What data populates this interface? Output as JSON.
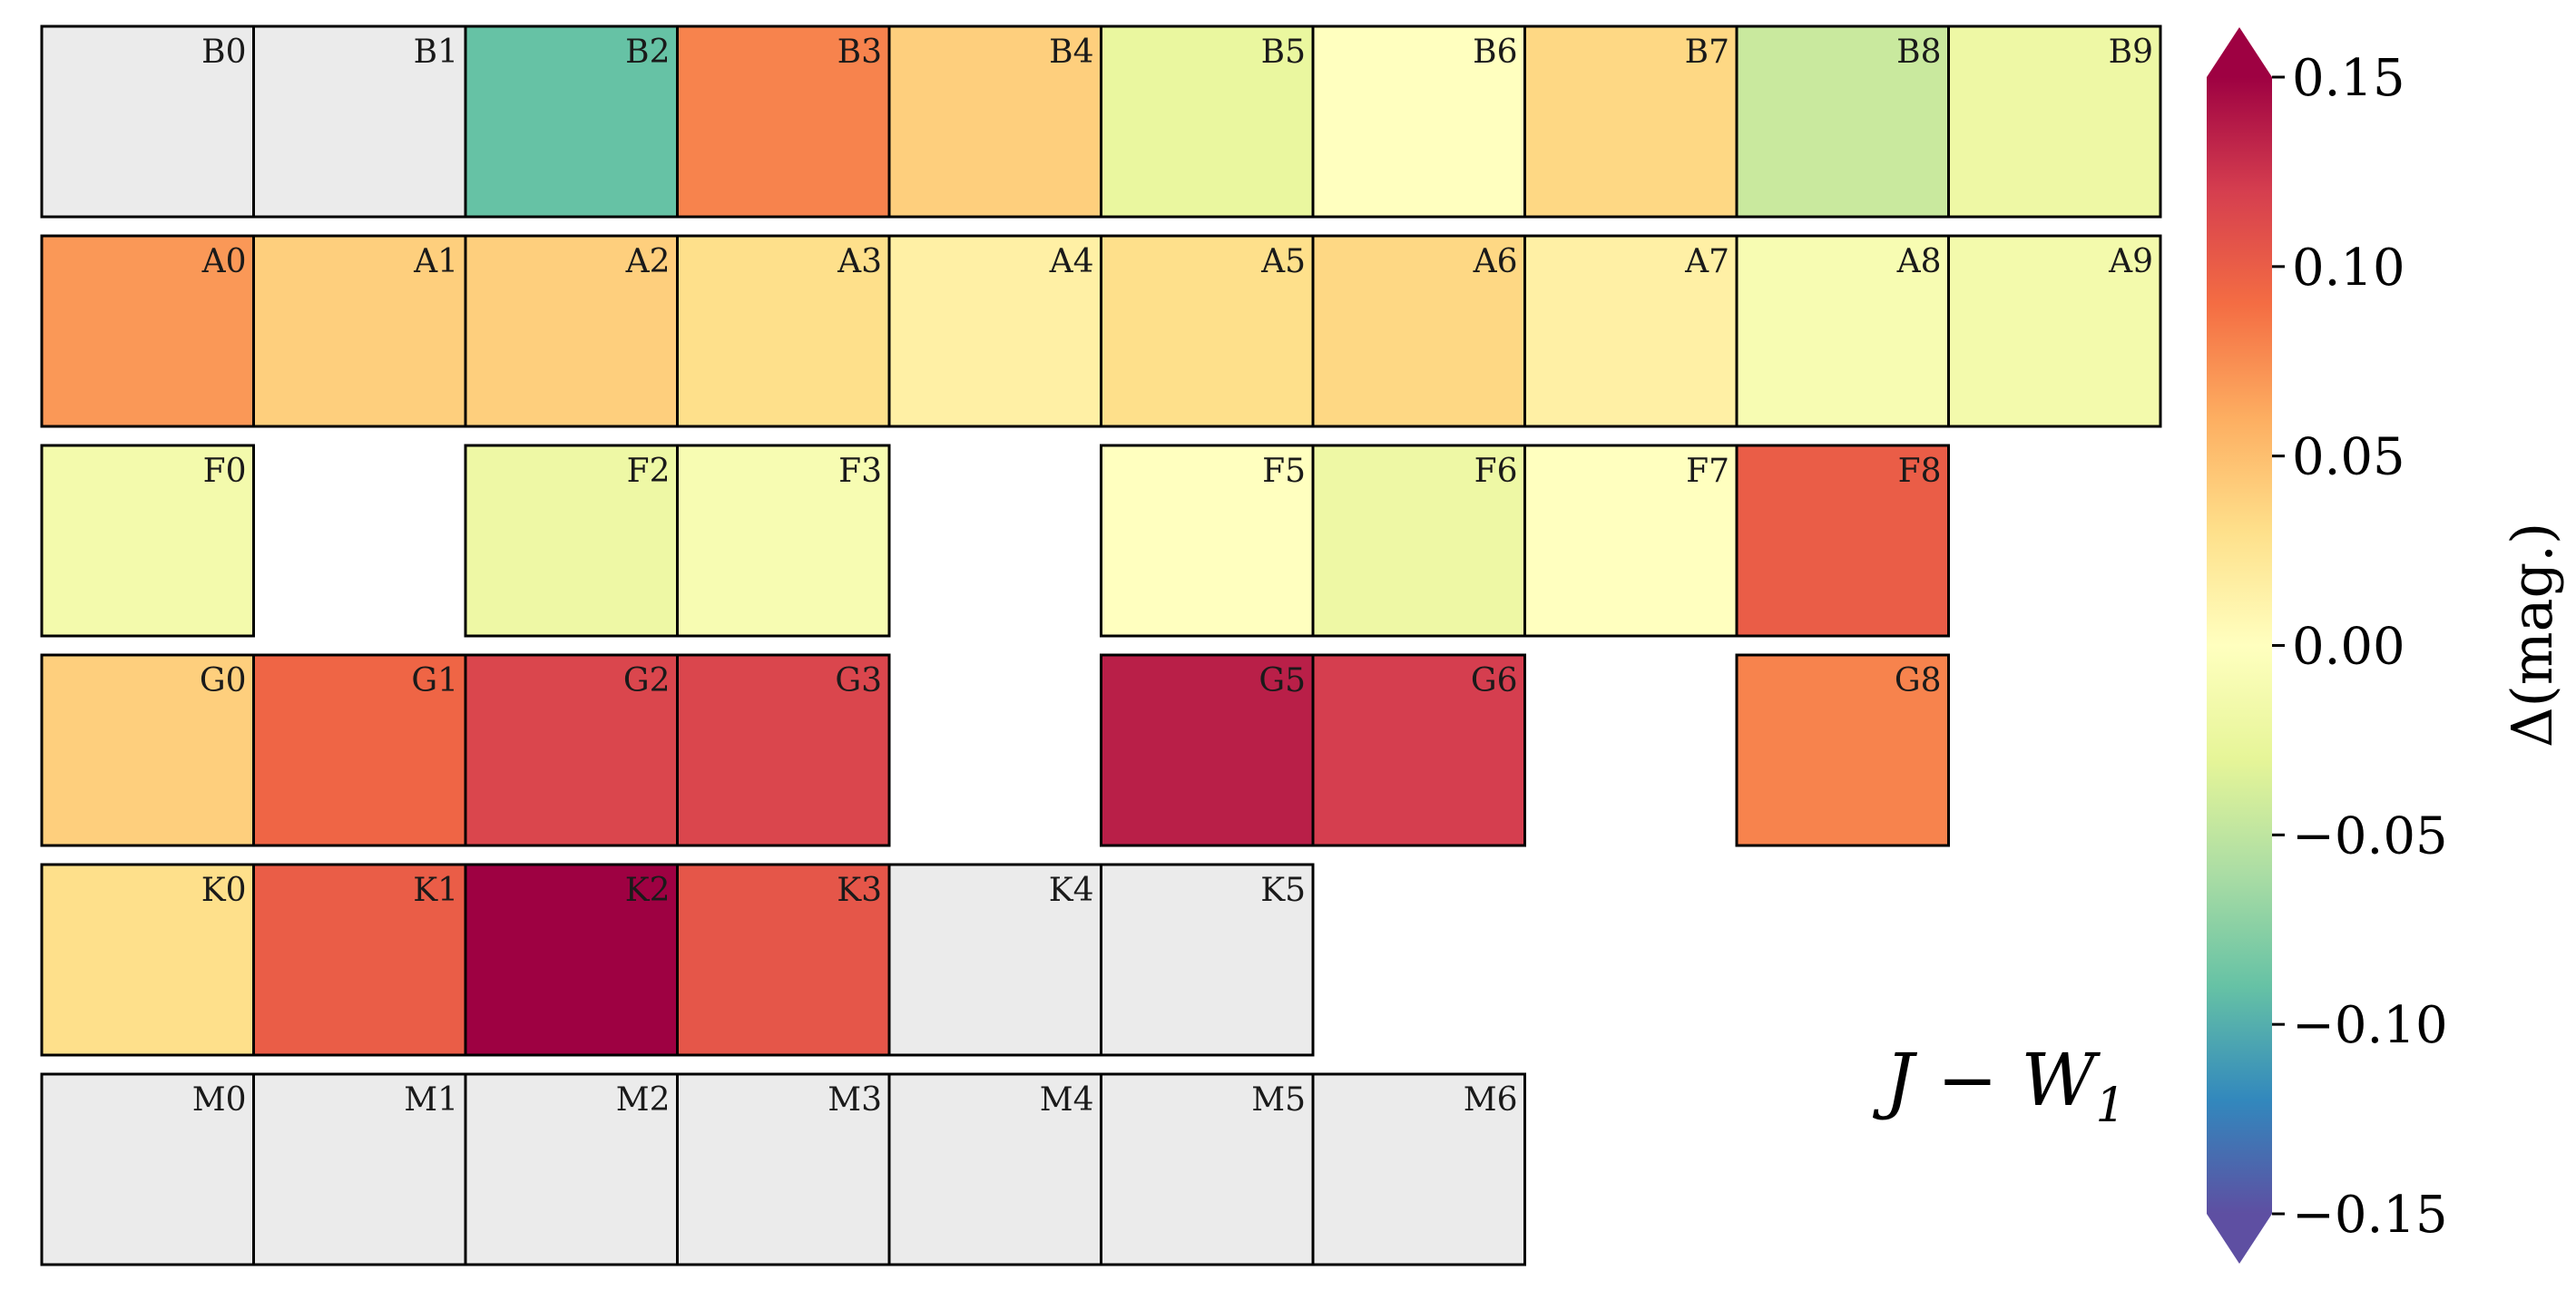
{
  "chart_data": {
    "type": "heatmap",
    "annotation": "J − W",
    "annotation_sub": "1",
    "colorbar": {
      "label": "Δ(mag.)",
      "colormap": "Spectral_r",
      "vmin": -0.15,
      "vmax": 0.15,
      "extend": "both",
      "ticks": [
        {
          "value": 0.15,
          "label": "0.15"
        },
        {
          "value": 0.1,
          "label": "0.10"
        },
        {
          "value": 0.05,
          "label": "0.05"
        },
        {
          "value": 0.0,
          "label": "0.00"
        },
        {
          "value": -0.05,
          "label": "−0.05"
        },
        {
          "value": -0.1,
          "label": "−0.10"
        },
        {
          "value": -0.15,
          "label": "−0.15"
        }
      ]
    },
    "missing_color": "#ebebeb",
    "rows": [
      {
        "name": "B",
        "cells": [
          {
            "label": "B0",
            "value": null
          },
          {
            "label": "B1",
            "value": null
          },
          {
            "label": "B2",
            "value": -0.09
          },
          {
            "label": "B3",
            "value": 0.08
          },
          {
            "label": "B4",
            "value": 0.04
          },
          {
            "label": "B5",
            "value": -0.025
          },
          {
            "label": "B6",
            "value": 0.0
          },
          {
            "label": "B7",
            "value": 0.035
          },
          {
            "label": "B8",
            "value": -0.045
          },
          {
            "label": "B9",
            "value": -0.02
          }
        ]
      },
      {
        "name": "A",
        "cells": [
          {
            "label": "A0",
            "value": 0.07
          },
          {
            "label": "A1",
            "value": 0.04
          },
          {
            "label": "A2",
            "value": 0.04
          },
          {
            "label": "A3",
            "value": 0.03
          },
          {
            "label": "A4",
            "value": 0.015
          },
          {
            "label": "A5",
            "value": 0.03
          },
          {
            "label": "A6",
            "value": 0.035
          },
          {
            "label": "A7",
            "value": 0.015
          },
          {
            "label": "A8",
            "value": -0.01
          },
          {
            "label": "A9",
            "value": -0.015
          }
        ]
      },
      {
        "name": "F",
        "cells": [
          {
            "label": "F0",
            "value": -0.015
          },
          null,
          {
            "label": "F2",
            "value": -0.02
          },
          {
            "label": "F3",
            "value": -0.01
          },
          null,
          {
            "label": "F5",
            "value": 0.0
          },
          {
            "label": "F6",
            "value": -0.02
          },
          {
            "label": "F7",
            "value": 0.0
          },
          {
            "label": "F8",
            "value": 0.1
          }
        ]
      },
      {
        "name": "G",
        "cells": [
          {
            "label": "G0",
            "value": 0.04
          },
          {
            "label": "G1",
            "value": 0.095
          },
          {
            "label": "G2",
            "value": 0.115
          },
          {
            "label": "G3",
            "value": 0.115
          },
          null,
          {
            "label": "G5",
            "value": 0.135
          },
          {
            "label": "G6",
            "value": 0.12
          },
          null,
          {
            "label": "G8",
            "value": 0.08
          }
        ]
      },
      {
        "name": "K",
        "cells": [
          {
            "label": "K0",
            "value": 0.03
          },
          {
            "label": "K1",
            "value": 0.1
          },
          {
            "label": "K2",
            "value": 0.15
          },
          {
            "label": "K3",
            "value": 0.105
          },
          {
            "label": "K4",
            "value": null
          },
          {
            "label": "K5",
            "value": null
          }
        ]
      },
      {
        "name": "M",
        "cells": [
          {
            "label": "M0",
            "value": null
          },
          {
            "label": "M1",
            "value": null
          },
          {
            "label": "M2",
            "value": null
          },
          {
            "label": "M3",
            "value": null
          },
          {
            "label": "M4",
            "value": null
          },
          {
            "label": "M5",
            "value": null
          },
          {
            "label": "M6",
            "value": null
          }
        ]
      }
    ]
  }
}
